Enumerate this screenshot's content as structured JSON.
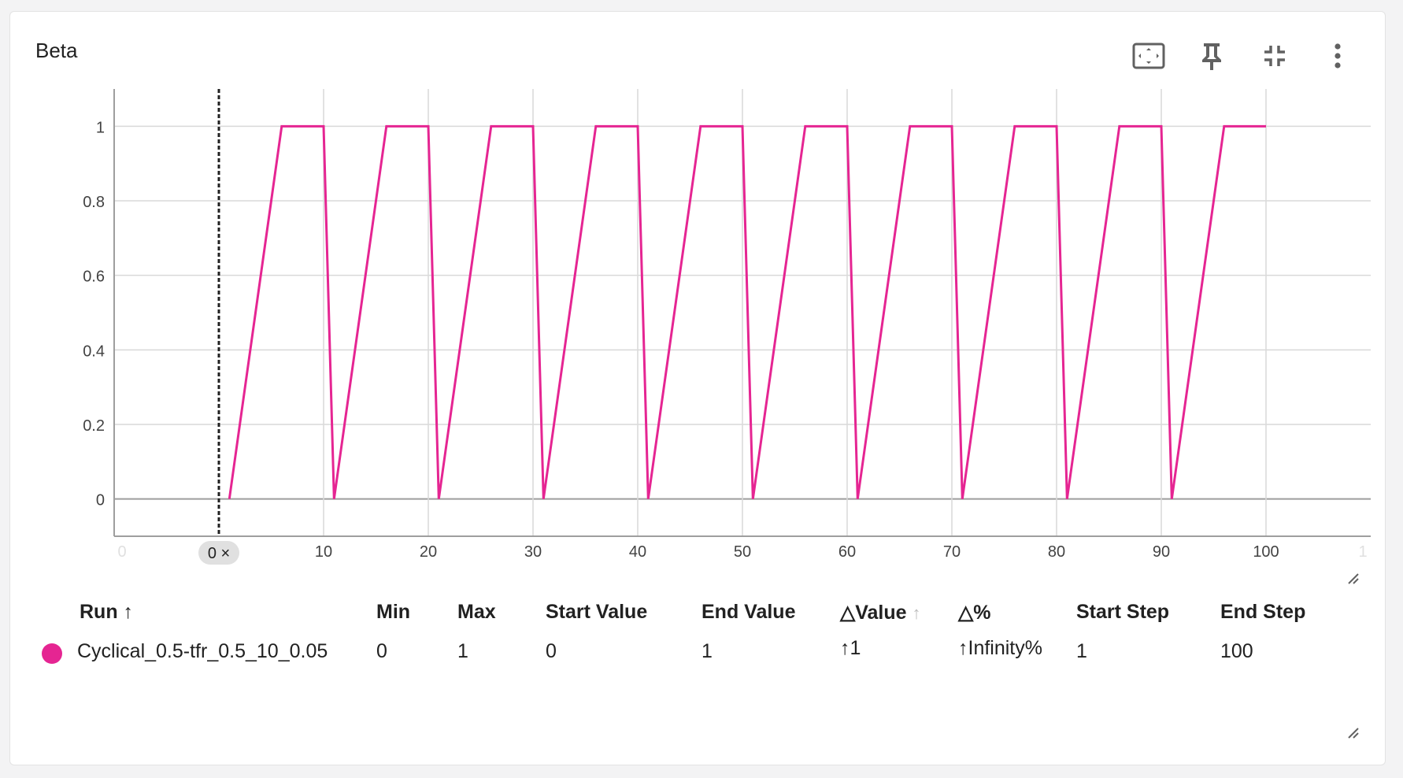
{
  "card": {
    "title": "Beta"
  },
  "toolbar": {
    "buttons": [
      {
        "name": "fit-domain-button",
        "icon": "fit-to-screen-icon"
      },
      {
        "name": "pin-button",
        "icon": "pin-icon"
      },
      {
        "name": "collapse-button",
        "icon": "collapse-icon"
      },
      {
        "name": "more-options-button",
        "icon": "more-vert-icon"
      }
    ]
  },
  "step_marker": {
    "label": "0 ×",
    "step": 0
  },
  "chart_data": {
    "type": "line",
    "title": "Beta",
    "xlim": [
      -10,
      110
    ],
    "ylim": [
      -0.1,
      1.1
    ],
    "x_ticks": [
      10,
      20,
      30,
      40,
      50,
      60,
      70,
      80,
      90,
      100
    ],
    "x_tick_labels": [
      "10",
      "20",
      "30",
      "40",
      "50",
      "60",
      "70",
      "80",
      "90",
      "100"
    ],
    "x_faded_ticks": [
      "0",
      "1"
    ],
    "y_ticks": [
      0,
      0.2,
      0.4,
      0.6,
      0.8,
      1
    ],
    "y_tick_labels": [
      "0",
      "0.2",
      "0.4",
      "0.6",
      "0.8",
      "1"
    ],
    "grid": true,
    "colors": {
      "series": "#e52592",
      "grid": "#d9d9d9",
      "axis": "#9e9e9e",
      "marker": "#212121"
    },
    "series": [
      {
        "name": "Cyclical_0.5-tfr_0.5_10_0.05",
        "x": [
          1,
          6,
          10,
          11,
          16,
          20,
          21,
          26,
          30,
          31,
          36,
          40,
          41,
          46,
          50,
          51,
          56,
          60,
          61,
          66,
          70,
          71,
          76,
          80,
          81,
          86,
          90,
          91,
          96,
          100
        ],
        "y": [
          0,
          1,
          1,
          0,
          1,
          1,
          0,
          1,
          1,
          0,
          1,
          1,
          0,
          1,
          1,
          0,
          1,
          1,
          0,
          1,
          1,
          0,
          1,
          1,
          0,
          1,
          1,
          0,
          1,
          1
        ]
      }
    ]
  },
  "table": {
    "headers": {
      "run": "Run ↑",
      "min": "Min",
      "max": "Max",
      "start_value": "Start Value",
      "end_value": "End Value",
      "delta_value": "△Value",
      "delta_value_sort": "↑",
      "delta_pct": "△%",
      "start_step": "Start Step",
      "end_step": "End Step"
    },
    "row": {
      "color": "#e52592",
      "run": "Cyclical_0.5-tfr_0.5_10_0.05",
      "min": "0",
      "max": "1",
      "start_value": "0",
      "end_value": "1",
      "delta_value": "↑1",
      "delta_pct": "↑Infinity%",
      "start_step": "1",
      "end_step": "100"
    }
  }
}
